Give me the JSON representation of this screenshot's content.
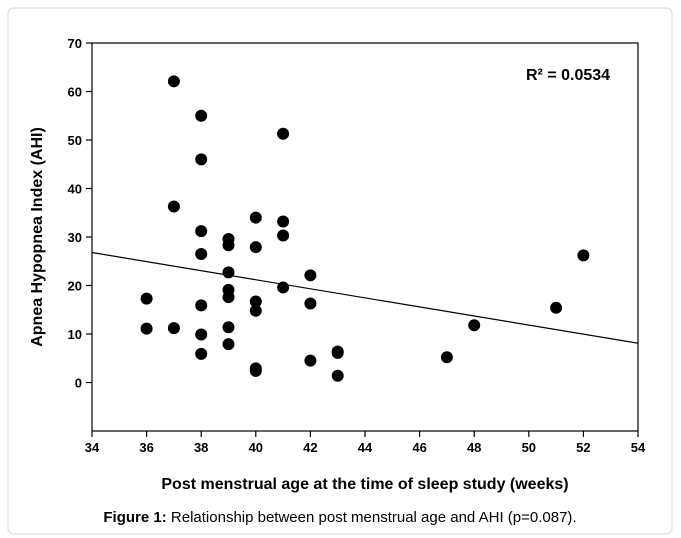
{
  "chart_data": {
    "type": "scatter",
    "x_label": "Post menstrual age at the time of sleep study (weeks)",
    "y_label": "Apnea Hypopnea Index (AHI)",
    "annotation": "R² = 0.0534",
    "caption_label": "Figure 1:",
    "caption": "Relationship between post menstrual age and AHI (p=0.087).",
    "color": "#000000",
    "x": [
      36,
      36,
      37,
      37,
      37,
      38,
      38,
      38,
      38,
      38,
      38,
      38,
      39,
      39,
      39,
      39,
      39,
      39,
      39,
      40,
      40,
      40,
      40,
      40,
      40,
      41,
      41,
      41,
      41,
      42,
      42,
      42,
      43,
      43,
      43,
      47,
      48,
      51,
      52
    ],
    "values": [
      17.3,
      11.1,
      62.1,
      36.3,
      11.2,
      55,
      46,
      31.2,
      26.5,
      15.9,
      9.9,
      5.9,
      29.6,
      28.3,
      22.7,
      19.1,
      17.6,
      11.4,
      7.9,
      34,
      27.9,
      16.7,
      14.8,
      2.9,
      2.4,
      51.3,
      33.2,
      30.3,
      19.6,
      22.1,
      16.3,
      4.5,
      6.4,
      6.1,
      1.4,
      5.2,
      11.8,
      15.4,
      26.2
    ],
    "trendline": {
      "x": [
        34,
        54
      ],
      "y": [
        26.8,
        8.1
      ]
    },
    "xlim": [
      34,
      54
    ],
    "xticks": [
      34,
      36,
      38,
      40,
      42,
      44,
      46,
      48,
      50,
      52,
      54
    ],
    "ylim": [
      -10,
      70
    ],
    "yticks": [
      0,
      10,
      20,
      30,
      40,
      50,
      60,
      70
    ]
  }
}
